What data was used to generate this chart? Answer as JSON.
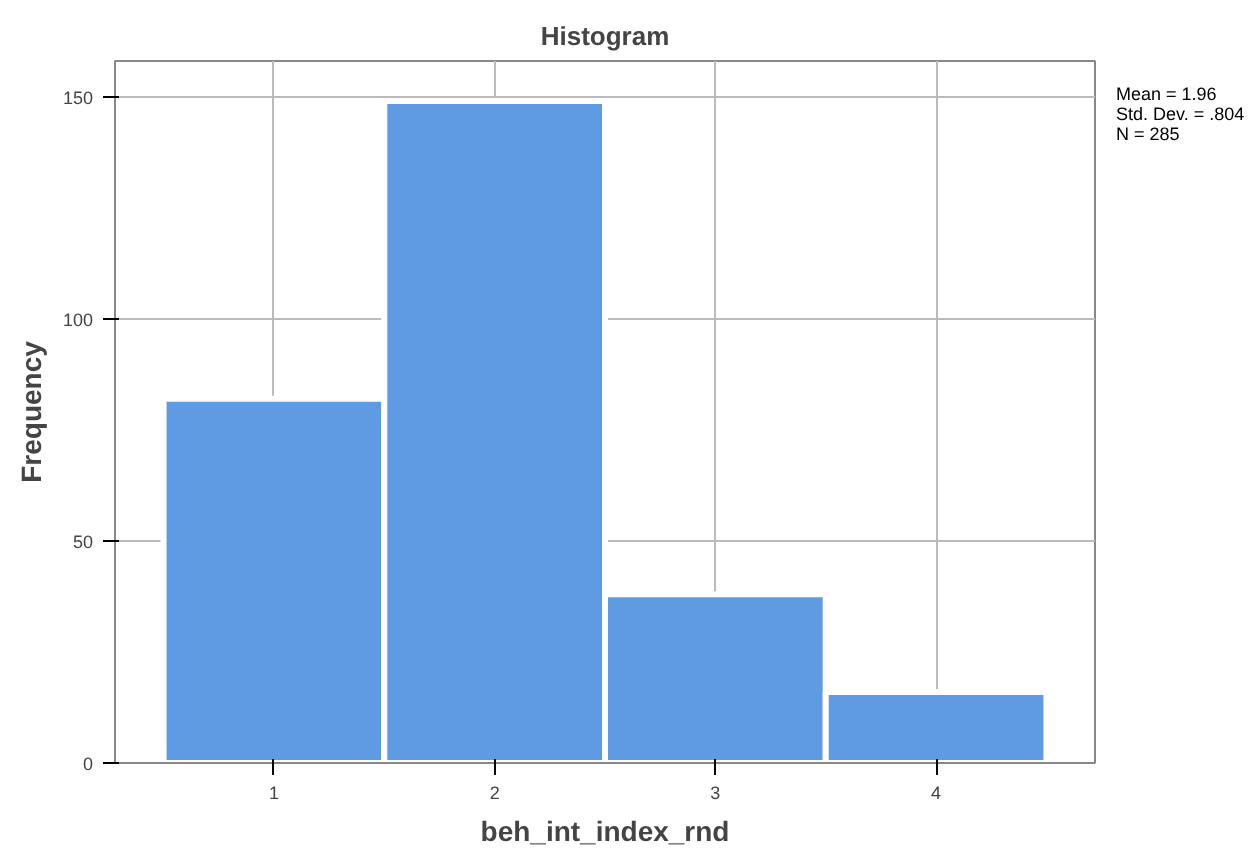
{
  "chart_data": {
    "type": "histogram",
    "title": "Histogram",
    "xlabel": "beh_int_index_rnd",
    "ylabel": "Frequency",
    "bins": [
      0.5,
      1.5,
      2.5,
      3.5,
      4.5
    ],
    "values": [
      82,
      149,
      38,
      16
    ],
    "color": "#5f9be3",
    "xlim": [
      0.28,
      4.72
    ],
    "xticks": [
      1,
      2,
      3,
      4
    ],
    "ylim": [
      0,
      158
    ],
    "yticks": [
      0,
      50,
      100,
      150
    ],
    "grid": true,
    "annotations": [
      "Mean = 1.96",
      "Std. Dev. = .804",
      "N = 285"
    ]
  }
}
